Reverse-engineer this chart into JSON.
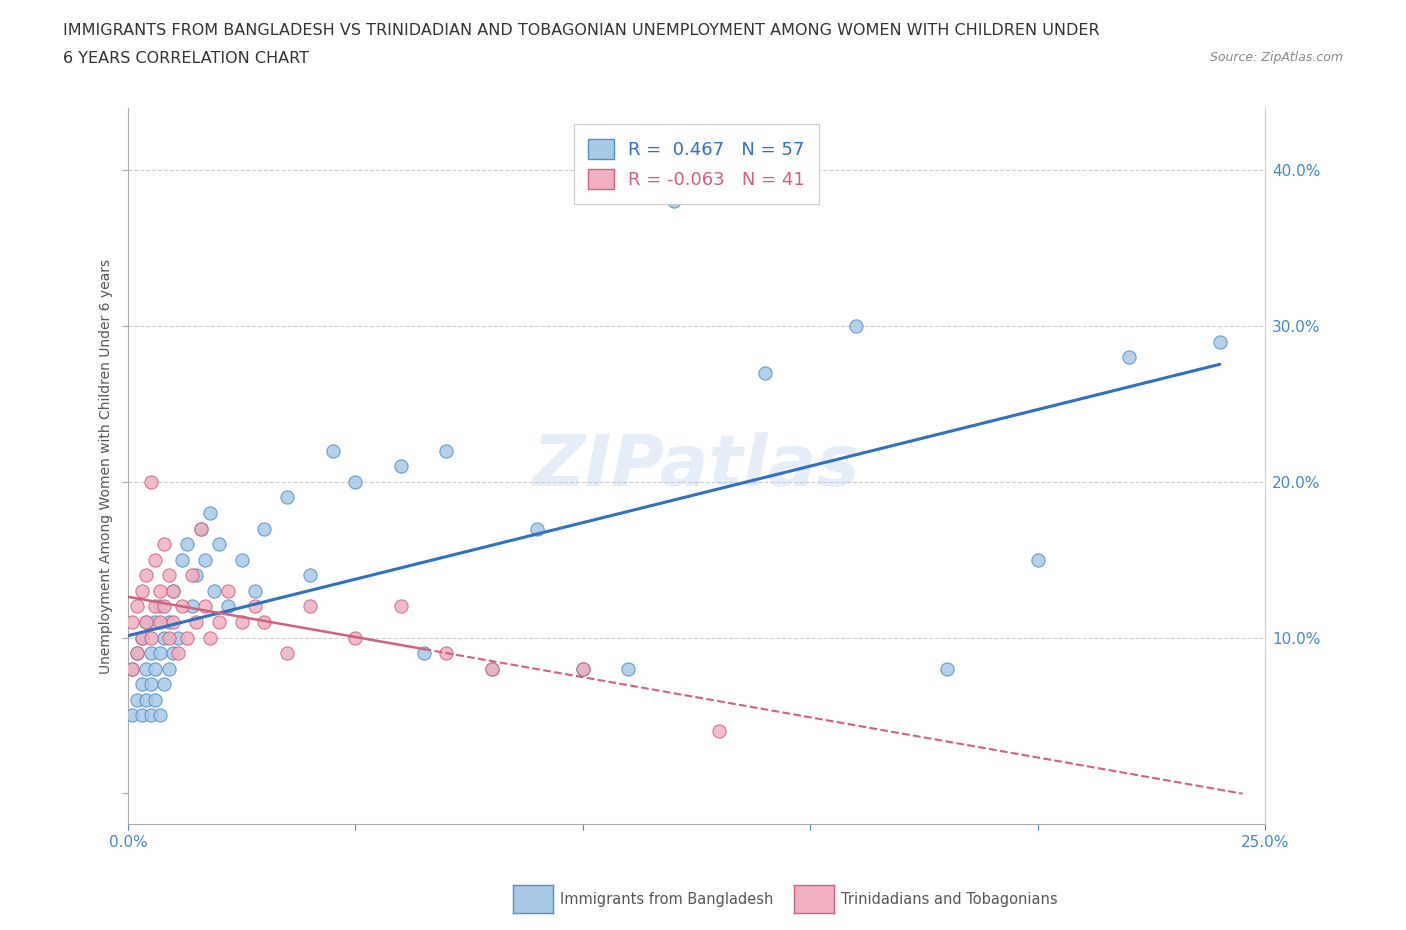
{
  "title_line1": "IMMIGRANTS FROM BANGLADESH VS TRINIDADIAN AND TOBAGONIAN UNEMPLOYMENT AMONG WOMEN WITH CHILDREN UNDER",
  "title_line2": "6 YEARS CORRELATION CHART",
  "source": "Source: ZipAtlas.com",
  "ylabel": "Unemployment Among Women with Children Under 6 years",
  "xlim": [
    0.0,
    0.25
  ],
  "ylim": [
    -0.02,
    0.44
  ],
  "xticks": [
    0.0,
    0.05,
    0.1,
    0.15,
    0.2,
    0.25
  ],
  "yticks": [
    0.0,
    0.1,
    0.2,
    0.3,
    0.4
  ],
  "bangladesh_color": "#a8c8e8",
  "bangladesh_edge": "#5090c8",
  "trinidad_color": "#f0b0c0",
  "trinidad_edge": "#d06080",
  "trendline_bangladesh_color": "#3070c0",
  "trendline_trinidad_color": "#d06080",
  "legend_R_bangladesh": "0.467",
  "legend_N_bangladesh": "57",
  "legend_R_trinidad": "-0.063",
  "legend_N_trinidad": "41",
  "watermark": "ZIPatlas",
  "bangladesh_x": [
    0.001,
    0.001,
    0.002,
    0.002,
    0.003,
    0.003,
    0.003,
    0.004,
    0.004,
    0.004,
    0.005,
    0.005,
    0.005,
    0.006,
    0.006,
    0.006,
    0.007,
    0.007,
    0.007,
    0.008,
    0.008,
    0.009,
    0.009,
    0.01,
    0.01,
    0.011,
    0.012,
    0.013,
    0.014,
    0.015,
    0.016,
    0.017,
    0.018,
    0.019,
    0.02,
    0.022,
    0.025,
    0.028,
    0.03,
    0.035,
    0.04,
    0.045,
    0.05,
    0.06,
    0.065,
    0.07,
    0.08,
    0.09,
    0.1,
    0.11,
    0.12,
    0.14,
    0.16,
    0.18,
    0.2,
    0.22,
    0.24
  ],
  "bangladesh_y": [
    0.05,
    0.08,
    0.06,
    0.09,
    0.07,
    0.1,
    0.05,
    0.08,
    0.06,
    0.11,
    0.07,
    0.09,
    0.05,
    0.08,
    0.11,
    0.06,
    0.09,
    0.12,
    0.05,
    0.07,
    0.1,
    0.08,
    0.11,
    0.09,
    0.13,
    0.1,
    0.15,
    0.16,
    0.12,
    0.14,
    0.17,
    0.15,
    0.18,
    0.13,
    0.16,
    0.12,
    0.15,
    0.13,
    0.17,
    0.19,
    0.14,
    0.22,
    0.2,
    0.21,
    0.09,
    0.22,
    0.08,
    0.17,
    0.08,
    0.08,
    0.38,
    0.27,
    0.3,
    0.08,
    0.15,
    0.28,
    0.29
  ],
  "trinidad_x": [
    0.001,
    0.001,
    0.002,
    0.002,
    0.003,
    0.003,
    0.004,
    0.004,
    0.005,
    0.005,
    0.006,
    0.006,
    0.007,
    0.007,
    0.008,
    0.008,
    0.009,
    0.009,
    0.01,
    0.01,
    0.011,
    0.012,
    0.013,
    0.014,
    0.015,
    0.016,
    0.017,
    0.018,
    0.02,
    0.022,
    0.025,
    0.028,
    0.03,
    0.035,
    0.04,
    0.05,
    0.06,
    0.07,
    0.08,
    0.1,
    0.13
  ],
  "trinidad_y": [
    0.08,
    0.11,
    0.09,
    0.12,
    0.1,
    0.13,
    0.11,
    0.14,
    0.1,
    0.2,
    0.12,
    0.15,
    0.11,
    0.13,
    0.12,
    0.16,
    0.1,
    0.14,
    0.11,
    0.13,
    0.09,
    0.12,
    0.1,
    0.14,
    0.11,
    0.17,
    0.12,
    0.1,
    0.11,
    0.13,
    0.11,
    0.12,
    0.11,
    0.09,
    0.12,
    0.1,
    0.12,
    0.09,
    0.08,
    0.08,
    0.04
  ]
}
